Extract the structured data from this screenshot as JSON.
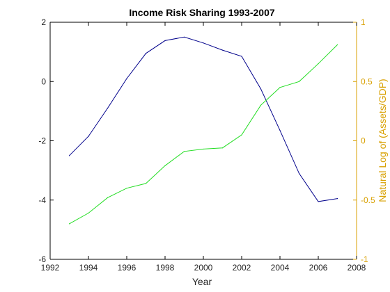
{
  "chart_data": {
    "type": "line",
    "title": "Income Risk Sharing 1993-2007",
    "xlabel": "Year",
    "ylabel": "",
    "y2label": "Natural Log of (Assets/GDP)",
    "xlim": [
      1992,
      2008
    ],
    "ylim": [
      -6,
      2
    ],
    "y2lim": [
      -1,
      1
    ],
    "x_ticks": [
      1992,
      1994,
      1996,
      1998,
      2000,
      2002,
      2004,
      2006,
      2008
    ],
    "y_ticks": [
      -6,
      -4,
      -2,
      0,
      2
    ],
    "y2_ticks": [
      -1,
      -0.5,
      0,
      0.5,
      1
    ],
    "grid": false,
    "colors": {
      "series_left": "#00008b",
      "series_right": "#22dd22",
      "right_axis": "#d8a000",
      "axes": "#000000"
    },
    "series": [
      {
        "axis": "left",
        "x": [
          1993,
          1994,
          1995,
          1996,
          1997,
          1998,
          1999,
          2000,
          2001,
          2002,
          2003,
          2004,
          2005,
          2006,
          2007
        ],
        "values": [
          -2.5,
          -1.85,
          -0.9,
          0.1,
          0.95,
          1.38,
          1.5,
          1.3,
          1.06,
          0.85,
          -0.25,
          -1.65,
          -3.1,
          -4.05,
          -3.95
        ]
      },
      {
        "axis": "right",
        "x": [
          1993,
          1994,
          1995,
          1996,
          1997,
          1998,
          1999,
          2000,
          2001,
          2002,
          2003,
          2004,
          2005,
          2006,
          2007
        ],
        "values": [
          -0.7,
          -0.61,
          -0.48,
          -0.4,
          -0.36,
          -0.21,
          -0.09,
          -0.07,
          -0.06,
          0.05,
          0.3,
          0.45,
          0.5,
          0.65,
          0.81
        ]
      }
    ]
  }
}
